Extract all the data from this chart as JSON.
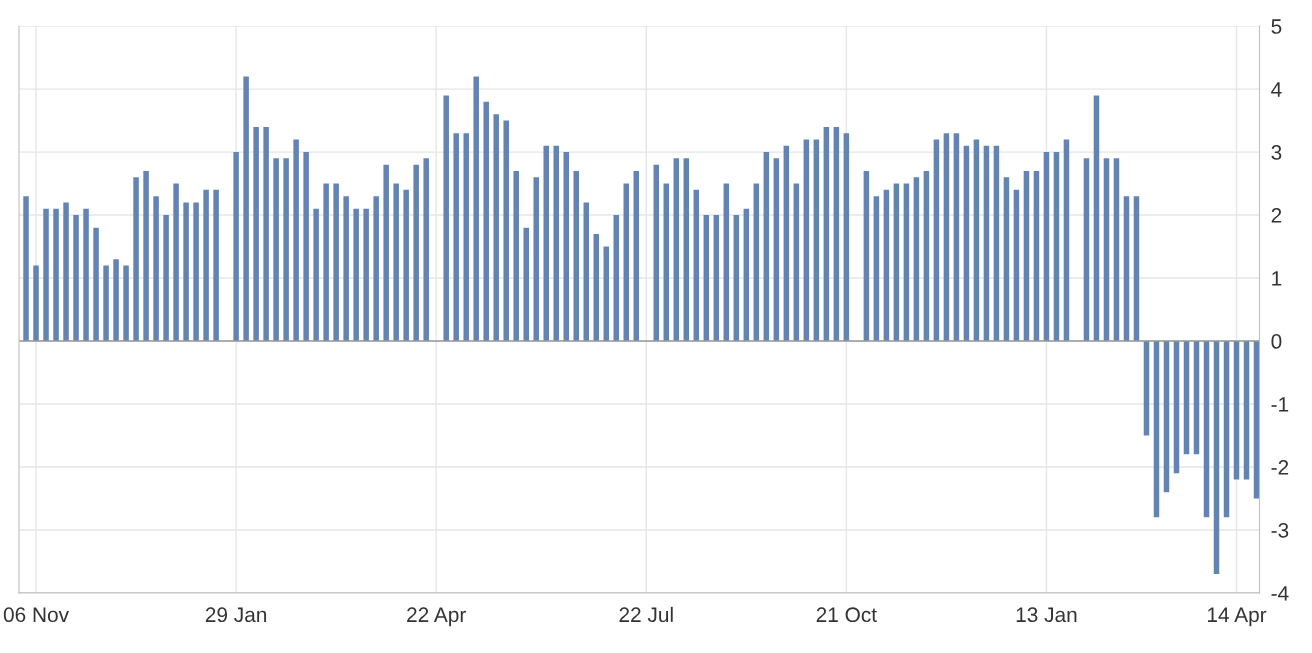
{
  "chart_data": {
    "type": "bar",
    "categories": [
      null,
      "06 Nov",
      null,
      null,
      null,
      null,
      null,
      null,
      null,
      null,
      null,
      null,
      null,
      null,
      null,
      null,
      null,
      null,
      null,
      null,
      null,
      "29 Jan",
      null,
      null,
      null,
      null,
      null,
      null,
      null,
      null,
      null,
      null,
      null,
      null,
      null,
      null,
      null,
      null,
      null,
      null,
      null,
      "22 Apr",
      null,
      null,
      null,
      null,
      null,
      null,
      null,
      null,
      null,
      null,
      null,
      null,
      null,
      null,
      null,
      null,
      null,
      null,
      null,
      null,
      "22 Jul",
      null,
      null,
      null,
      null,
      null,
      null,
      null,
      null,
      null,
      null,
      null,
      null,
      null,
      null,
      null,
      null,
      null,
      null,
      null,
      "21 Oct",
      null,
      null,
      null,
      null,
      null,
      null,
      null,
      null,
      null,
      null,
      null,
      null,
      null,
      null,
      null,
      null,
      null,
      null,
      null,
      "13 Jan",
      null,
      null,
      null,
      null,
      null,
      null,
      null,
      null,
      null,
      null,
      null,
      null,
      null,
      null,
      null,
      null,
      null,
      null,
      "14 Apr",
      null,
      null
    ],
    "values": [
      2.3,
      1.2,
      2.1,
      2.1,
      2.2,
      2.0,
      2.1,
      1.8,
      1.2,
      1.3,
      1.2,
      2.6,
      2.7,
      2.3,
      2.0,
      2.5,
      2.2,
      2.2,
      2.4,
      2.4,
      null,
      3.0,
      4.2,
      3.4,
      3.4,
      2.9,
      2.9,
      3.2,
      3.0,
      2.1,
      2.5,
      2.5,
      2.3,
      2.1,
      2.1,
      2.3,
      2.8,
      2.5,
      2.4,
      2.8,
      2.9,
      null,
      3.9,
      3.3,
      3.3,
      4.2,
      3.8,
      3.6,
      3.5,
      2.7,
      1.8,
      2.6,
      3.1,
      3.1,
      3.0,
      2.7,
      2.2,
      1.7,
      1.5,
      2.0,
      2.5,
      2.7,
      null,
      2.8,
      2.5,
      2.9,
      2.9,
      2.4,
      2.0,
      2.0,
      2.5,
      2.0,
      2.1,
      2.5,
      3.0,
      2.9,
      3.1,
      2.5,
      3.2,
      3.2,
      3.4,
      3.4,
      3.3,
      null,
      2.7,
      2.3,
      2.4,
      2.5,
      2.5,
      2.6,
      2.7,
      3.2,
      3.3,
      3.3,
      3.1,
      3.2,
      3.1,
      3.1,
      2.6,
      2.4,
      2.7,
      2.7,
      3.0,
      3.0,
      3.2,
      null,
      2.9,
      3.9,
      2.9,
      2.9,
      2.3,
      2.3,
      -1.5,
      -2.8,
      -2.4,
      -2.1,
      -1.8,
      -1.8,
      -2.8,
      -3.7,
      -2.8,
      -2.2,
      -2.2,
      -2.5
    ],
    "color": "#6383b3",
    "ylim": [
      -4,
      5
    ],
    "yticks": [
      -4,
      -3,
      -2,
      -1,
      0,
      1,
      2,
      3,
      4,
      5
    ],
    "grid": true
  }
}
